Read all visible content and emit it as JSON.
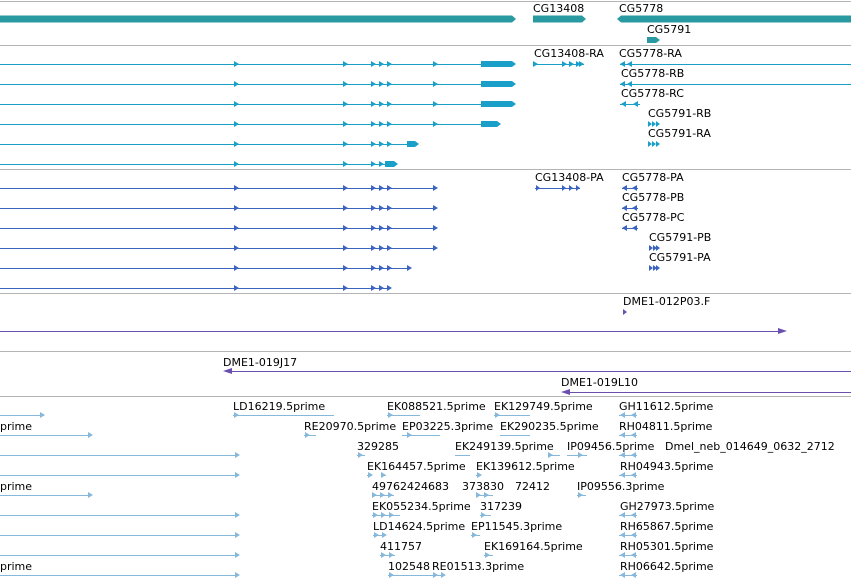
{
  "colors": {
    "gene": "#2a9aa2",
    "transcript": "#1aa0c8",
    "protein": "#3a64c0",
    "clone": "#6a4fb0",
    "est": "#86b8dc",
    "track_border": "#b4b4b4"
  },
  "tracks": {
    "genes": {
      "labels": [
        "CG13408",
        "CG5778",
        "CG5791"
      ]
    },
    "transcripts": {
      "labels": [
        "CG13408-RA",
        "CG5778-RA",
        "CG5778-RB",
        "CG5778-RC",
        "CG5791-RB",
        "CG5791-RA"
      ]
    },
    "proteins": {
      "labels": [
        "CG13408-PA",
        "CG5778-PA",
        "CG5778-PB",
        "CG5778-PC",
        "CG5791-PB",
        "CG5791-PA"
      ]
    },
    "clones_a": {
      "labels": [
        "DME1-012P03.F"
      ]
    },
    "clones_b": {
      "labels": [
        "DME1-019J17",
        "DME1-019L10"
      ]
    },
    "ests": {
      "labels": [
        "LD16219.5prime",
        "EK088521.5prime",
        "EK129749.5prime",
        "GH11612.5prime",
        "prime",
        "RE20970.5prime",
        "EP03225.3prime",
        "EK290235.5prime",
        "RH04811.5prime",
        "329285",
        "EK249139.5prime",
        "IP09456.5prime",
        "Dmel_neb_014649_0632_2712",
        "EK164457.5prime",
        "EK139612.5prime",
        "RH04943.5prime",
        "prime",
        "49762424683",
        "373830",
        "72412",
        "IP09556.3prime",
        "EK055234.5prime",
        "317239",
        "GH27973.5prime",
        "LD14624.5prime",
        "EP11545.3prime",
        "RH65867.5prime",
        "411757",
        "EK169164.5prime",
        "RH05301.5prime",
        "prime",
        "102548",
        "RE01513.3prime",
        "RH06642.5prime"
      ]
    }
  }
}
